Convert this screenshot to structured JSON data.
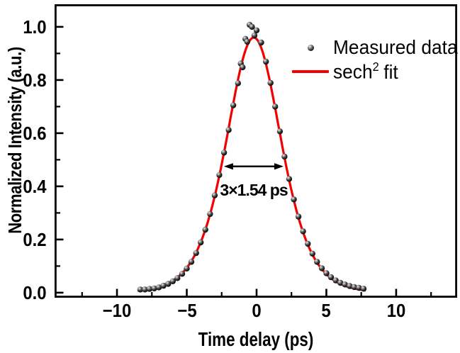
{
  "colors": {
    "background": "#ffffff",
    "axis": "#000000",
    "text": "#000000",
    "fit_line": "#f30000",
    "marker_dark": "#000000",
    "marker_highlight": "#f2f2f2"
  },
  "legend": {
    "items": [
      {
        "label": "Measured data",
        "symbol": "black-ball-marker"
      },
      {
        "parts": [
          "sech",
          "2",
          "fit"
        ],
        "full_label": "sech2 fit",
        "symbol": "red-line"
      }
    ]
  },
  "chart_data": {
    "type": "scatter",
    "title": "",
    "xlabel": "Time delay (ps)",
    "ylabel": "Normalized Intensity (a.u.)",
    "xlim": [
      -14.47,
      14.37
    ],
    "ylim": [
      -0.019,
      1.085
    ],
    "grid": false,
    "legend_position": "upper-right-inside",
    "x_major_ticks": [
      -10,
      -5,
      0,
      5,
      10
    ],
    "x_tick_labels": [
      "−10",
      "−5",
      "0",
      "5",
      "10"
    ],
    "x_minor_ticks": [
      -12.5,
      -7.5,
      -2.5,
      2.5,
      7.5,
      12.5
    ],
    "y_major_ticks": [
      0,
      0.2,
      0.4,
      0.6,
      0.8,
      1.0
    ],
    "y_tick_labels": [
      "0.0",
      "0.2",
      "0.4",
      "0.6",
      "0.8",
      "1.0"
    ],
    "y_minor_ticks": [
      0.1,
      0.3,
      0.5,
      0.7,
      0.9
    ],
    "series": [
      {
        "name": "Measured data",
        "type": "scatter",
        "marker": "3d-ball-black",
        "points": [
          [
            -8.33,
            0.012
          ],
          [
            -8.0,
            0.012
          ],
          [
            -7.67,
            0.014
          ],
          [
            -7.33,
            0.016
          ],
          [
            -7.0,
            0.02
          ],
          [
            -6.67,
            0.026
          ],
          [
            -6.33,
            0.033
          ],
          [
            -6.0,
            0.043
          ],
          [
            -5.67,
            0.055
          ],
          [
            -5.33,
            0.071
          ],
          [
            -5.0,
            0.091
          ],
          [
            -4.67,
            0.116
          ],
          [
            -4.33,
            0.149
          ],
          [
            -4.0,
            0.189
          ],
          [
            -3.67,
            0.237
          ],
          [
            -3.33,
            0.296
          ],
          [
            -3.0,
            0.366
          ],
          [
            -2.67,
            0.443
          ],
          [
            -2.33,
            0.527
          ],
          [
            -2.0,
            0.612
          ],
          [
            -1.67,
            0.705
          ],
          [
            -1.33,
            0.788
          ],
          [
            -1.13,
            0.862
          ],
          [
            -1.0,
            0.848
          ],
          [
            -0.8,
            0.955
          ],
          [
            -0.67,
            0.944
          ],
          [
            -0.5,
            1.008
          ],
          [
            -0.33,
            1.0
          ],
          [
            -0.15,
            0.968
          ],
          [
            0.0,
            0.987
          ],
          [
            0.33,
            0.941
          ],
          [
            0.67,
            0.869
          ],
          [
            1.0,
            0.789
          ],
          [
            1.33,
            0.7
          ],
          [
            1.67,
            0.607
          ],
          [
            2.0,
            0.512
          ],
          [
            2.33,
            0.428
          ],
          [
            2.67,
            0.351
          ],
          [
            3.0,
            0.286
          ],
          [
            3.33,
            0.231
          ],
          [
            3.67,
            0.184
          ],
          [
            4.0,
            0.147
          ],
          [
            4.33,
            0.116
          ],
          [
            4.67,
            0.092
          ],
          [
            5.0,
            0.073
          ],
          [
            5.33,
            0.058
          ],
          [
            5.67,
            0.046
          ],
          [
            6.0,
            0.037
          ],
          [
            6.33,
            0.031
          ],
          [
            6.67,
            0.025
          ],
          [
            7.0,
            0.021
          ],
          [
            7.33,
            0.018
          ],
          [
            7.67,
            0.015
          ]
        ]
      },
      {
        "name": "sech2 fit",
        "type": "line",
        "color": "#f30000",
        "fit": {
          "function": "sech2",
          "amplitude": 0.96,
          "center_ps": -0.2,
          "width_T_ps": 2.62,
          "autocorrelation_fwhm_ps": 4.62,
          "t_range": [
            -8.45,
            7.85
          ]
        }
      }
    ],
    "annotation": {
      "text": "3×1.54 ps",
      "arrow_v": 0.475,
      "arrow_t1": -2.34,
      "arrow_t2": 1.93,
      "text_t": -0.2,
      "text_v": 0.387
    }
  }
}
